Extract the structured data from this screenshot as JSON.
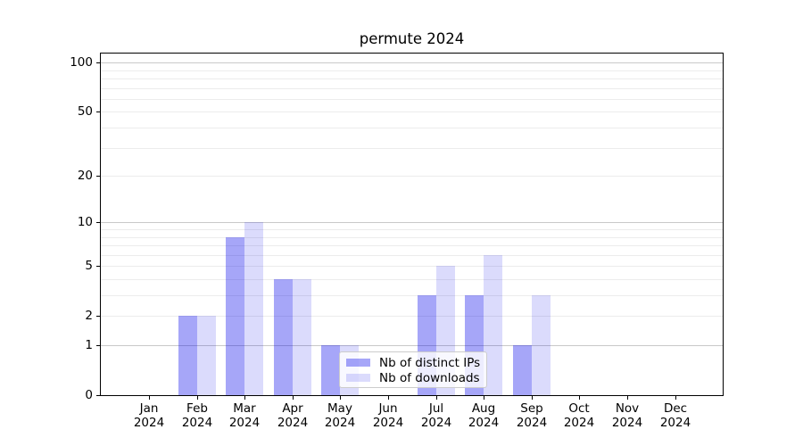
{
  "colors": {
    "bar_distinct_ips": "rgba(0,0,235,0.35)",
    "bar_downloads": "rgba(0,0,235,0.14)",
    "grid_major": "#c9c9c9",
    "grid_minor": "#ececec",
    "axis": "#000000",
    "text": "#000000",
    "legend_border": "#cccccc",
    "legend_background": "rgba(255,255,255,0.8)"
  },
  "chart_data": {
    "type": "bar",
    "title": "permute 2024",
    "categories": [
      "Jan",
      "Feb",
      "Mar",
      "Apr",
      "May",
      "Jun",
      "Jul",
      "Aug",
      "Sep",
      "Oct",
      "Nov",
      "Dec"
    ],
    "year_label": "2024",
    "series": [
      {
        "name": "Nb of distinct IPs",
        "color_key": "bar_distinct_ips",
        "values": [
          0,
          2,
          8,
          4,
          1,
          0,
          3,
          3,
          1,
          0,
          0,
          0
        ]
      },
      {
        "name": "Nb of downloads",
        "color_key": "bar_downloads",
        "values": [
          0,
          2,
          10,
          4,
          1,
          0,
          5,
          6,
          3,
          0,
          0,
          0
        ]
      }
    ],
    "xlabel": "",
    "ylabel": "",
    "y_scale": "log1p",
    "ylim": [
      0,
      113
    ],
    "y_ticks": [
      0,
      1,
      2,
      5,
      10,
      20,
      50,
      100
    ],
    "y_major_gridlines": [
      1,
      10,
      100
    ],
    "y_minor_gridlines": [
      2,
      3,
      4,
      5,
      6,
      7,
      8,
      9,
      20,
      30,
      40,
      50,
      60,
      70,
      80,
      90
    ],
    "grid": true,
    "legend_position": "lower center"
  }
}
